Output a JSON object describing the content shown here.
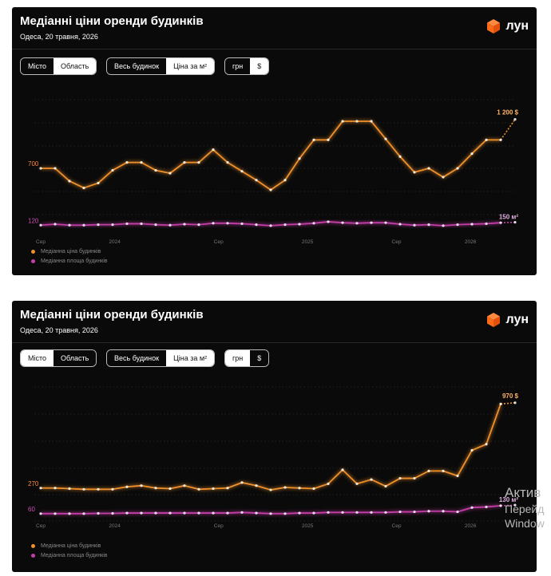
{
  "brand": {
    "logo_text": "лун",
    "accent": "#ff6a1a"
  },
  "panels": [
    {
      "title": "Медіанні ціни оренди будинків",
      "subtitle": "Одеса, 20 травня, 2026",
      "controls": {
        "region": {
          "options": [
            "Місто",
            "Область"
          ],
          "selected": "Місто"
        },
        "mode": {
          "options": [
            "Весь будинок",
            "Ціна за м²"
          ],
          "selected": "Весь будинок"
        },
        "currency": {
          "options": [
            "грн",
            "$"
          ],
          "selected": "$"
        }
      },
      "legend": [
        "Медіанна ціна будинків",
        "Медіанна площа будинків"
      ]
    },
    {
      "title": "Медіанні ціни оренди будинків",
      "subtitle": "Одеса, 20 травня, 2026",
      "controls": {
        "region": {
          "options": [
            "Місто",
            "Область"
          ],
          "selected": "Область"
        },
        "mode": {
          "options": [
            "Весь будинок",
            "Ціна за м²"
          ],
          "selected": "Весь будинок"
        },
        "currency": {
          "options": [
            "грн",
            "$"
          ],
          "selected": "$"
        }
      },
      "legend": [
        "Медіанна ціна будинків",
        "Медіанна площа будинків"
      ]
    }
  ],
  "chart_data": [
    {
      "type": "line",
      "x_tick_labels": [
        "Сер",
        "2024",
        "Сер",
        "2025",
        "Сер",
        "2026"
      ],
      "y_start_labels": [
        "700",
        "120"
      ],
      "end_labels": [
        "1 200 $",
        "150 м²"
      ],
      "ylim": [
        0,
        1400
      ],
      "grid": true,
      "series": [
        {
          "name": "Медіанна ціна будинків",
          "color": "#f0902a",
          "values": [
            700,
            700,
            570,
            500,
            550,
            680,
            760,
            760,
            680,
            650,
            760,
            760,
            890,
            760,
            670,
            580,
            480,
            580,
            800,
            990,
            990,
            1180,
            1180,
            1180,
            1000,
            820,
            660,
            700,
            610,
            700,
            850,
            990,
            990,
            1200
          ]
        },
        {
          "name": "Медіанна площа будинків",
          "color": "#c43ea8",
          "values": [
            120,
            130,
            120,
            120,
            125,
            125,
            135,
            135,
            125,
            120,
            130,
            125,
            140,
            140,
            135,
            125,
            115,
            125,
            130,
            140,
            155,
            145,
            140,
            145,
            145,
            130,
            120,
            125,
            115,
            125,
            130,
            135,
            145,
            150
          ]
        }
      ]
    },
    {
      "type": "line",
      "x_tick_labels": [
        "Сер",
        "2024",
        "Сер",
        "2025",
        "Сер",
        "2026"
      ],
      "y_start_labels": [
        "270",
        "60"
      ],
      "end_labels": [
        "970 $",
        "130 м²"
      ],
      "ylim": [
        0,
        1100
      ],
      "grid": true,
      "series": [
        {
          "name": "Медіанна ціна будинків",
          "color": "#f0902a",
          "values": [
            270,
            270,
            265,
            260,
            260,
            260,
            280,
            290,
            270,
            265,
            290,
            260,
            265,
            270,
            315,
            290,
            255,
            275,
            270,
            265,
            305,
            420,
            305,
            340,
            285,
            350,
            350,
            410,
            410,
            370,
            580,
            630,
            960,
            970
          ]
        },
        {
          "name": "Медіанна площа будинків",
          "color": "#c43ea8",
          "values": [
            60,
            60,
            60,
            60,
            62,
            62,
            65,
            65,
            65,
            65,
            65,
            65,
            65,
            65,
            70,
            65,
            60,
            60,
            65,
            65,
            70,
            70,
            70,
            70,
            70,
            75,
            75,
            80,
            80,
            75,
            110,
            115,
            125,
            130
          ]
        }
      ]
    }
  ],
  "watermark": {
    "line1": "Актив",
    "line2": "Перейд",
    "line3": "Window"
  }
}
